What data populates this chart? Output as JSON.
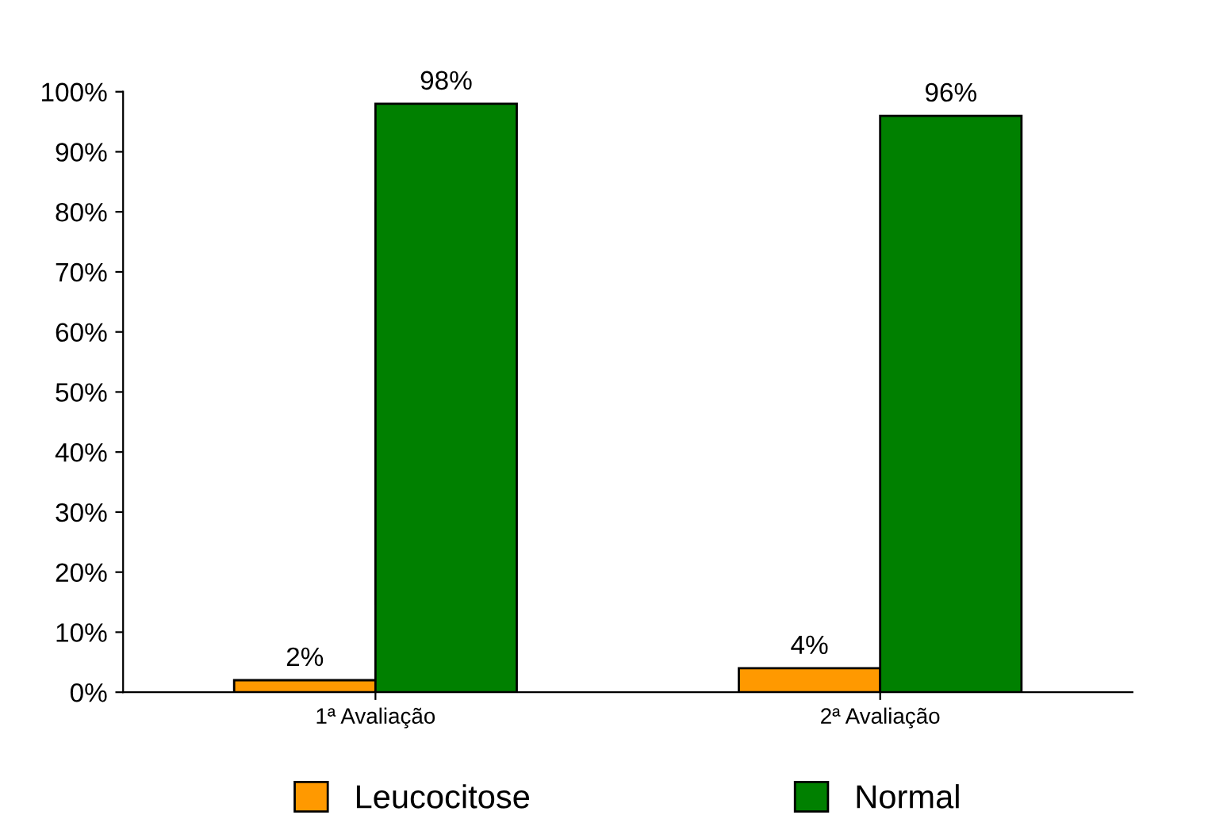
{
  "chart_data": {
    "type": "bar",
    "categories": [
      "1ª Avaliação",
      "2ª Avaliação"
    ],
    "series": [
      {
        "name": "Leucocitose",
        "color": "#ff9900",
        "values": [
          2,
          4
        ],
        "value_labels": [
          "2%",
          "4%"
        ]
      },
      {
        "name": "Normal",
        "color": "#008000",
        "values": [
          98,
          96
        ],
        "value_labels": [
          "98%",
          "96%"
        ]
      }
    ],
    "ylim": [
      0,
      100
    ],
    "yticks": [
      {
        "value": 0,
        "label": "0%"
      },
      {
        "value": 10,
        "label": "10%"
      },
      {
        "value": 20,
        "label": "20%"
      },
      {
        "value": 30,
        "label": "30%"
      },
      {
        "value": 40,
        "label": "40%"
      },
      {
        "value": 50,
        "label": "50%"
      },
      {
        "value": 60,
        "label": "60%"
      },
      {
        "value": 70,
        "label": "70%"
      },
      {
        "value": 80,
        "label": "80%"
      },
      {
        "value": 90,
        "label": "90%"
      },
      {
        "value": 100,
        "label": "100%"
      }
    ],
    "grid": false,
    "legend": "bottom"
  }
}
